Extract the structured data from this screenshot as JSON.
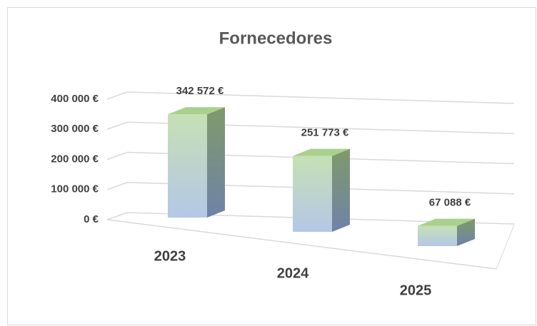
{
  "chart_data": {
    "type": "bar3d",
    "title": "Fornecedores",
    "categories": [
      "2023",
      "2024",
      "2025"
    ],
    "values": [
      342572,
      251773,
      67088
    ],
    "value_labels": [
      "342 572 €",
      "251 773 €",
      "67 088 €"
    ],
    "ylim": [
      0,
      400000
    ],
    "yticks": [
      {
        "value": 0,
        "label": "0 €"
      },
      {
        "value": 100000,
        "label": "100 000 €"
      },
      {
        "value": 200000,
        "label": "200 000 €"
      },
      {
        "value": 300000,
        "label": "300 000 €"
      },
      {
        "value": 400000,
        "label": "400 000 €"
      }
    ],
    "grid": true
  }
}
